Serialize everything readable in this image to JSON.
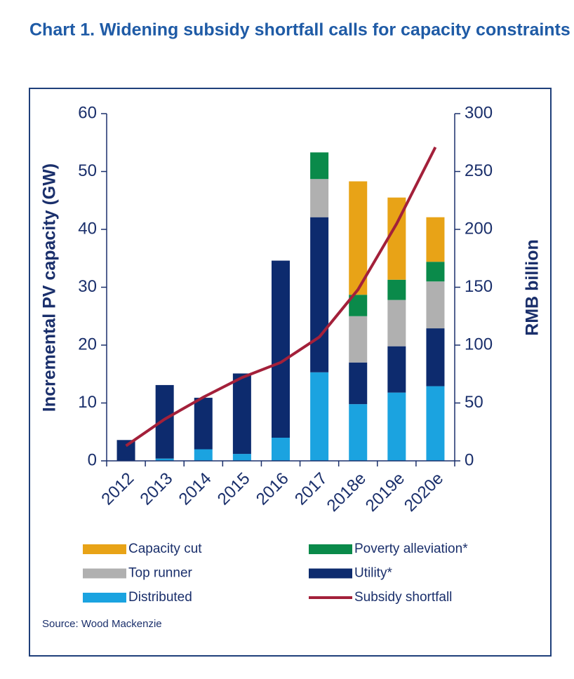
{
  "chart_data": {
    "type": "bar",
    "title": "Chart 1. Widening subsidy shortfall calls for capacity constraints",
    "ylabel": "Incremental PV capacity (GW)",
    "y2label": "RMB billion",
    "source": "Source: Wood Mackenzie",
    "categories": [
      "2012",
      "2013",
      "2014",
      "2015",
      "2016",
      "2017",
      "2018e",
      "2019e",
      "2020e"
    ],
    "stacked": true,
    "series": [
      {
        "name": "Distributed",
        "color": "#1ba3e0",
        "values": [
          0,
          0.4,
          2,
          1.2,
          4,
          15.3,
          9.8,
          11.8,
          12.9
        ]
      },
      {
        "name": "Utility*",
        "color": "#0d2b6e",
        "values": [
          3.6,
          12.7,
          8.9,
          13.9,
          30.6,
          26.8,
          7.2,
          8,
          10
        ]
      },
      {
        "name": "Top runner",
        "color": "#b0b0b0",
        "values": [
          0,
          0,
          0,
          0,
          0,
          6.6,
          8,
          8,
          8.1
        ]
      },
      {
        "name": "Poverty alleviation*",
        "color": "#0a8a4a",
        "values": [
          0,
          0,
          0,
          0,
          0,
          4.6,
          3.7,
          3.5,
          3.4
        ]
      },
      {
        "name": "Capacity cut",
        "color": "#e8a317",
        "values": [
          0,
          0,
          0,
          0,
          0,
          0,
          19.6,
          14.2,
          7.7
        ]
      },
      {
        "name": "Subsidy shortfall",
        "color": "#a3203a",
        "type": "line",
        "axis": "y2",
        "values": [
          13,
          36,
          55,
          72,
          85,
          107,
          148,
          205,
          271
        ]
      }
    ],
    "ylim": [
      0,
      60
    ],
    "yticks": [
      0,
      10,
      20,
      30,
      40,
      50,
      60
    ],
    "y2lim": [
      0,
      300
    ],
    "y2ticks": [
      0,
      50,
      100,
      150,
      200,
      250,
      300
    ]
  }
}
